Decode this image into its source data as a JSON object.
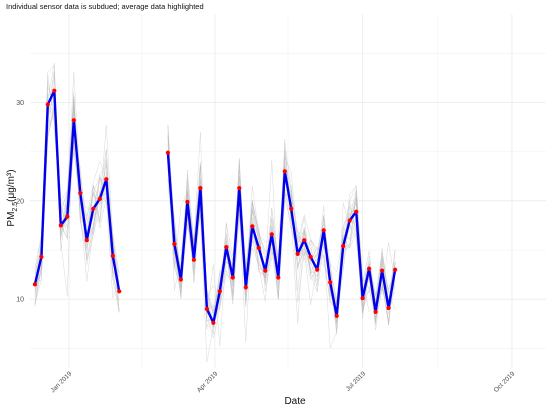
{
  "chart_data": {
    "type": "line",
    "subtitle": "Individual sensor data is subdued; average data highlighted",
    "xlabel": "Date",
    "ylabel_main": "PM",
    "ylabel_sub": "2.5",
    "ylabel_unit": "(μg/m³)",
    "xlim": [
      "2018-12-08",
      "2019-10-22"
    ],
    "ylim": [
      3,
      39
    ],
    "yticks": [
      10,
      20,
      30
    ],
    "xticks": [
      {
        "date": "2019-01-01",
        "label": "Jan 2019"
      },
      {
        "date": "2019-04-01",
        "label": "Apr 2019"
      },
      {
        "date": "2019-07-01",
        "label": "Jul 2019"
      },
      {
        "date": "2019-10-01",
        "label": "Oct 2019"
      }
    ],
    "grid": true,
    "colors": {
      "average_line": "#0000ee",
      "average_points": "#ff0000",
      "sensor_lines": "#bbbbbb",
      "grid": "#ebebeb"
    },
    "series": [
      {
        "role": "average",
        "segments": [
          [
            {
              "x": "2018-12-11",
              "y": 11.5
            },
            {
              "x": "2018-12-15",
              "y": 14.3
            },
            {
              "x": "2018-12-19",
              "y": 29.8
            },
            {
              "x": "2018-12-23",
              "y": 31.2
            },
            {
              "x": "2018-12-27",
              "y": 17.5
            },
            {
              "x": "2018-12-31",
              "y": 18.4
            },
            {
              "x": "2019-01-04",
              "y": 28.2
            },
            {
              "x": "2019-01-08",
              "y": 20.8
            },
            {
              "x": "2019-01-12",
              "y": 16.0
            },
            {
              "x": "2019-01-16",
              "y": 19.2
            },
            {
              "x": "2019-01-20",
              "y": 20.2
            },
            {
              "x": "2019-01-24",
              "y": 22.2
            },
            {
              "x": "2019-01-28",
              "y": 14.4
            },
            {
              "x": "2019-02-01",
              "y": 10.8
            }
          ],
          [
            {
              "x": "2019-03-03",
              "y": 24.9
            },
            {
              "x": "2019-03-07",
              "y": 15.6
            },
            {
              "x": "2019-03-11",
              "y": 12.0
            },
            {
              "x": "2019-03-15",
              "y": 19.9
            },
            {
              "x": "2019-03-19",
              "y": 14.0
            },
            {
              "x": "2019-03-23",
              "y": 21.3
            },
            {
              "x": "2019-03-27",
              "y": 9.0
            },
            {
              "x": "2019-03-31",
              "y": 7.6
            },
            {
              "x": "2019-04-04",
              "y": 10.8
            },
            {
              "x": "2019-04-08",
              "y": 15.3
            },
            {
              "x": "2019-04-12",
              "y": 12.2
            },
            {
              "x": "2019-04-16",
              "y": 21.3
            },
            {
              "x": "2019-04-20",
              "y": 11.2
            },
            {
              "x": "2019-04-24",
              "y": 17.4
            },
            {
              "x": "2019-04-28",
              "y": 15.2
            },
            {
              "x": "2019-05-02",
              "y": 12.9
            },
            {
              "x": "2019-05-06",
              "y": 16.6
            },
            {
              "x": "2019-05-10",
              "y": 12.2
            },
            {
              "x": "2019-05-14",
              "y": 23.0
            },
            {
              "x": "2019-05-18",
              "y": 19.2
            },
            {
              "x": "2019-05-22",
              "y": 14.6
            },
            {
              "x": "2019-05-26",
              "y": 16.0
            },
            {
              "x": "2019-05-30",
              "y": 14.3
            },
            {
              "x": "2019-06-03",
              "y": 13.0
            },
            {
              "x": "2019-06-07",
              "y": 17.0
            },
            {
              "x": "2019-06-11",
              "y": 11.7
            },
            {
              "x": "2019-06-15",
              "y": 8.3
            },
            {
              "x": "2019-06-19",
              "y": 15.4
            },
            {
              "x": "2019-06-23",
              "y": 18.0
            },
            {
              "x": "2019-06-27",
              "y": 18.9
            },
            {
              "x": "2019-07-01",
              "y": 10.1
            },
            {
              "x": "2019-07-05",
              "y": 13.1
            },
            {
              "x": "2019-07-09",
              "y": 8.7
            },
            {
              "x": "2019-07-13",
              "y": 12.9
            },
            {
              "x": "2019-07-17",
              "y": 9.1
            },
            {
              "x": "2019-07-21",
              "y": 13.0
            }
          ]
        ]
      }
    ]
  }
}
